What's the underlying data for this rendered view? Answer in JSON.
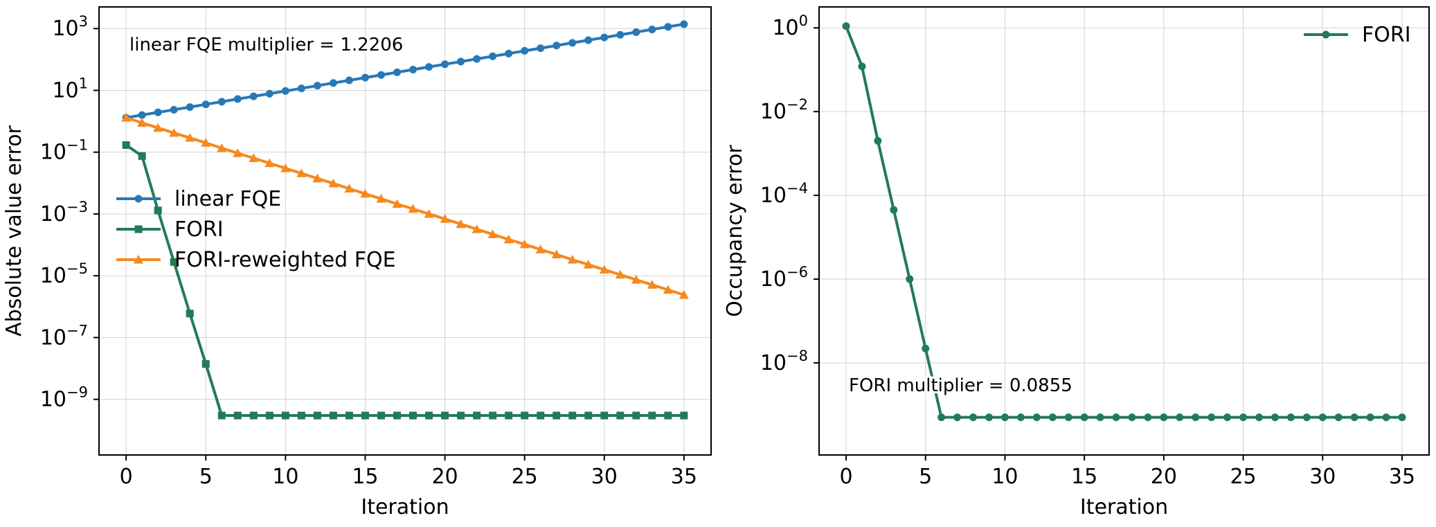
{
  "colors": {
    "linear_fqe": "#2878b5",
    "fori": "#237a57",
    "fori_reweighted": "#f5891f"
  },
  "chart_data": [
    {
      "type": "line",
      "yscale": "log",
      "xlabel": "Iteration",
      "ylabel": "Absolute value error",
      "xlim": [
        -1.7,
        36.7
      ],
      "ylim_log10": [
        -10.8,
        3.7
      ],
      "xticks": [
        0,
        5,
        10,
        15,
        20,
        25,
        30,
        35
      ],
      "yticks": [
        {
          "base": "10",
          "exp": "3",
          "value": 1000
        },
        {
          "base": "10",
          "exp": "1",
          "value": 10
        },
        {
          "base": "10",
          "exp": "−1",
          "value": 0.1
        },
        {
          "base": "10",
          "exp": "−3",
          "value": 0.001
        },
        {
          "base": "10",
          "exp": "−5",
          "value": 1e-05
        },
        {
          "base": "10",
          "exp": "−7",
          "value": 1e-07
        },
        {
          "base": "10",
          "exp": "−9",
          "value": 1e-09
        }
      ],
      "grid": true,
      "legend_location": "center-left",
      "annotation": "linear FQE multiplier = 1.2206",
      "series": [
        {
          "name": "linear FQE",
          "color": "#2878b5",
          "marker": "circle",
          "x": [
            0,
            1,
            2,
            3,
            4,
            5,
            6,
            7,
            8,
            9,
            10,
            11,
            12,
            13,
            14,
            15,
            16,
            17,
            18,
            19,
            20,
            21,
            22,
            23,
            24,
            25,
            26,
            27,
            28,
            29,
            30,
            31,
            32,
            33,
            34,
            35
          ],
          "y": [
            1.3,
            1.59,
            1.94,
            2.36,
            2.88,
            3.52,
            4.29,
            5.24,
            6.39,
            7.81,
            9.53,
            11.6,
            14.2,
            17.3,
            21.1,
            25.8,
            31.5,
            38.4,
            46.9,
            57.3,
            69.9,
            85.3,
            104,
            127,
            155,
            190,
            231,
            282,
            345,
            421,
            514,
            627,
            765,
            934,
            1140,
            1390
          ]
        },
        {
          "name": "FORI",
          "color": "#237a57",
          "marker": "square",
          "x": [
            0,
            1,
            2,
            3,
            4,
            5,
            6,
            7,
            8,
            9,
            10,
            11,
            12,
            13,
            14,
            15,
            16,
            17,
            18,
            19,
            20,
            21,
            22,
            23,
            24,
            25,
            26,
            27,
            28,
            29,
            30,
            31,
            32,
            33,
            34,
            35
          ],
          "y": [
            0.17,
            0.075,
            0.0013,
            2.8e-05,
            6e-07,
            1.4e-08,
            3e-10,
            3e-10,
            3e-10,
            3e-10,
            3e-10,
            3e-10,
            3e-10,
            3e-10,
            3e-10,
            3e-10,
            3e-10,
            3e-10,
            3e-10,
            3e-10,
            3e-10,
            3e-10,
            3e-10,
            3e-10,
            3e-10,
            3e-10,
            3e-10,
            3e-10,
            3e-10,
            3e-10,
            3e-10,
            3e-10,
            3e-10,
            3e-10,
            3e-10,
            3e-10
          ]
        },
        {
          "name": "FORI-reweighted FQE",
          "color": "#f5891f",
          "marker": "triangle",
          "x": [
            0,
            1,
            2,
            3,
            4,
            5,
            6,
            7,
            8,
            9,
            10,
            11,
            12,
            13,
            14,
            15,
            16,
            17,
            18,
            19,
            20,
            21,
            22,
            23,
            24,
            25,
            26,
            27,
            28,
            29,
            30,
            31,
            32,
            33,
            34,
            35
          ],
          "y": [
            1.3,
            0.89,
            0.61,
            0.42,
            0.29,
            0.2,
            0.135,
            0.093,
            0.064,
            0.044,
            0.03,
            0.0206,
            0.0141,
            0.0097,
            0.0066,
            0.0045,
            0.0031,
            0.0021,
            0.00146,
            0.001,
            0.00069,
            0.00047,
            0.00032,
            0.00022,
            0.00015,
            0.000104,
            7.1e-05,
            4.9e-05,
            3.3e-05,
            2.3e-05,
            1.57e-05,
            1.08e-05,
            7.4e-06,
            5.1e-06,
            3.5e-06,
            2.4e-06
          ]
        }
      ]
    },
    {
      "type": "line",
      "yscale": "log",
      "xlabel": "Iteration",
      "ylabel": "Occupancy error",
      "xlim": [
        -1.7,
        36.7
      ],
      "ylim_log10": [
        -10.2,
        0.5
      ],
      "xticks": [
        0,
        5,
        10,
        15,
        20,
        25,
        30,
        35
      ],
      "yticks": [
        {
          "base": "10",
          "exp": "0",
          "value": 1
        },
        {
          "base": "10",
          "exp": "−2",
          "value": 0.01
        },
        {
          "base": "10",
          "exp": "−4",
          "value": 0.0001
        },
        {
          "base": "10",
          "exp": "−6",
          "value": 1e-06
        },
        {
          "base": "10",
          "exp": "−8",
          "value": 1e-08
        }
      ],
      "grid": true,
      "legend_location": "top-right",
      "annotation": "FORI multiplier = 0.0855",
      "series": [
        {
          "name": "FORI",
          "color": "#237a57",
          "marker": "circle",
          "x": [
            0,
            1,
            2,
            3,
            4,
            5,
            6,
            7,
            8,
            9,
            10,
            11,
            12,
            13,
            14,
            15,
            16,
            17,
            18,
            19,
            20,
            21,
            22,
            23,
            24,
            25,
            26,
            27,
            28,
            29,
            30,
            31,
            32,
            33,
            34,
            35
          ],
          "y": [
            1.1,
            0.12,
            0.002,
            4.5e-05,
            1e-06,
            2.2e-08,
            5e-10,
            5e-10,
            5e-10,
            5e-10,
            5e-10,
            5e-10,
            5e-10,
            5e-10,
            5e-10,
            5e-10,
            5e-10,
            5e-10,
            5e-10,
            5e-10,
            5e-10,
            5e-10,
            5e-10,
            5e-10,
            5e-10,
            5e-10,
            5e-10,
            5e-10,
            5e-10,
            5e-10,
            5e-10,
            5e-10,
            5e-10,
            5e-10,
            5e-10,
            5e-10
          ]
        }
      ]
    }
  ]
}
